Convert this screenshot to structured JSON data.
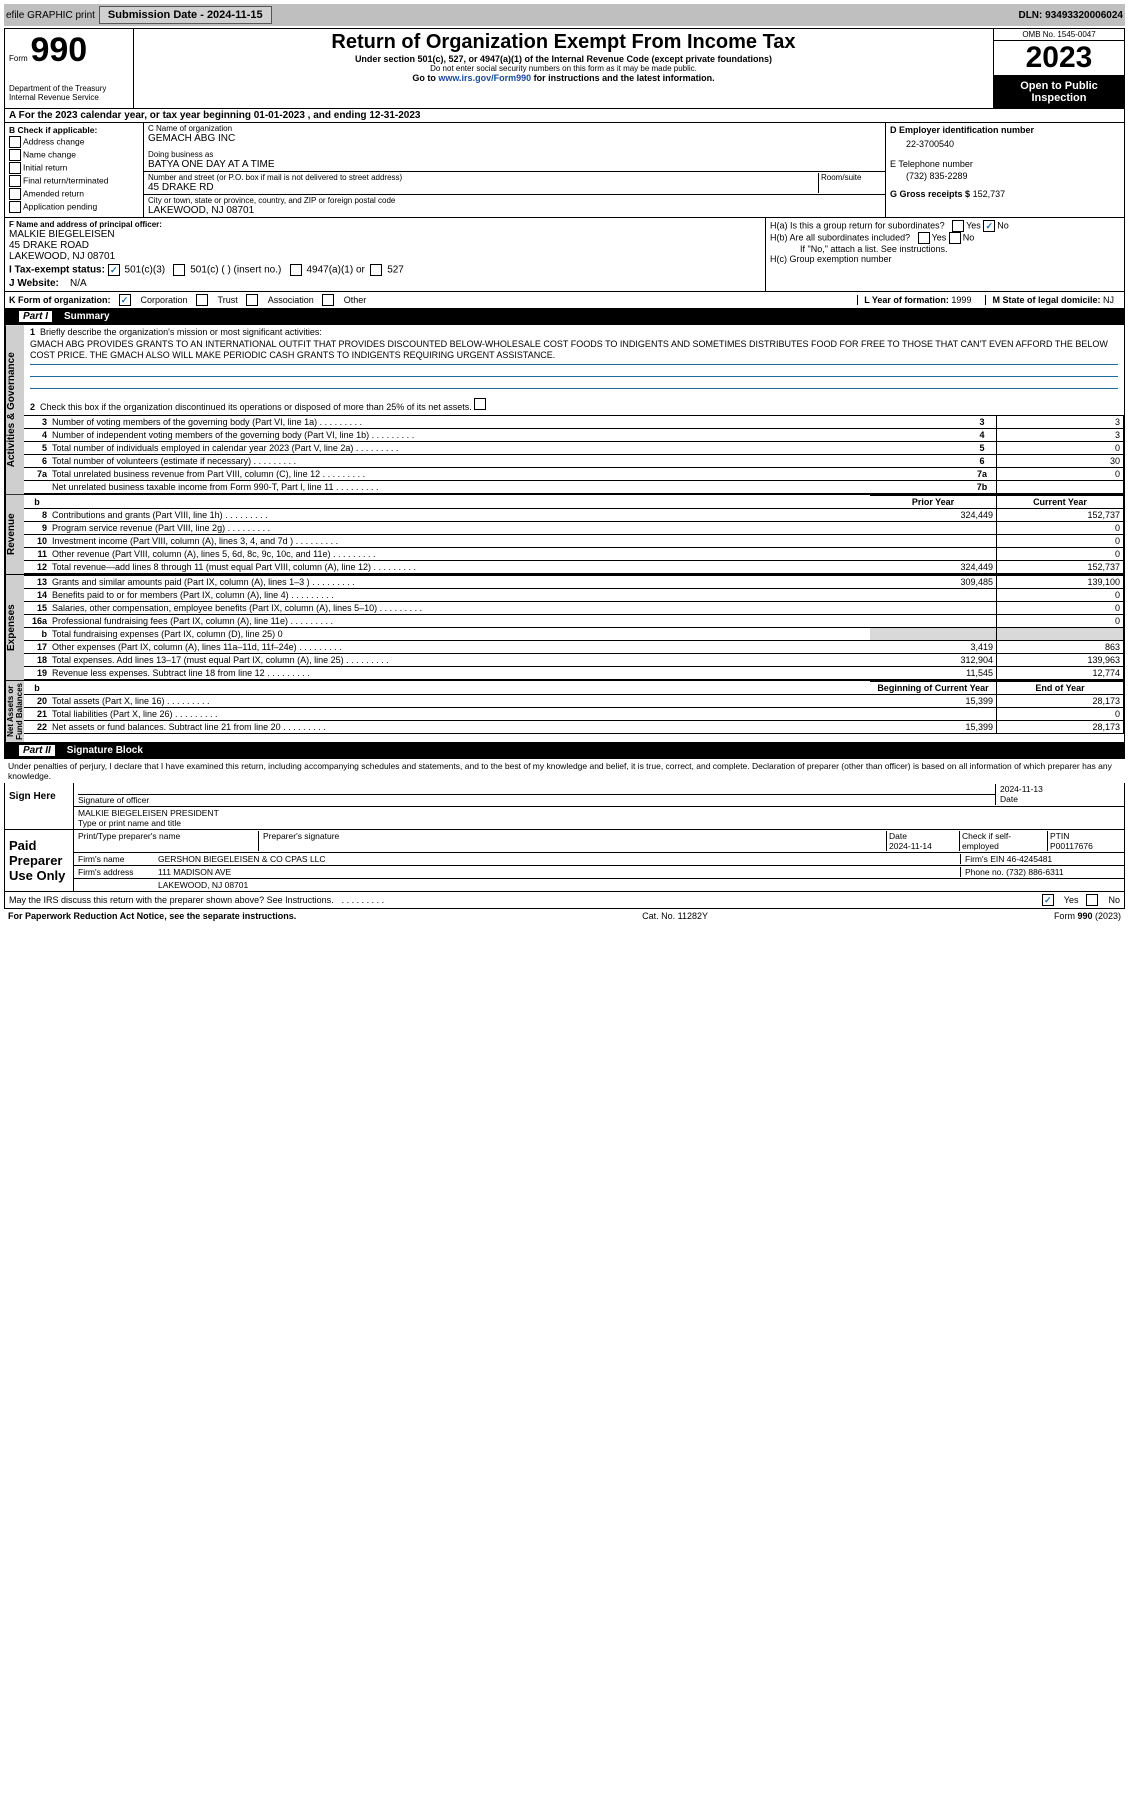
{
  "topbar": {
    "efile": "efile GRAPHIC print",
    "subdate_label": "Submission Date - 2024-11-15",
    "dln": "DLN: 93493320006024"
  },
  "header": {
    "form_small": "Form",
    "form_num": "990",
    "title": "Return of Organization Exempt From Income Tax",
    "subtitle": "Under section 501(c), 527, or 4947(a)(1) of the Internal Revenue Code (except private foundations)",
    "warn": "Do not enter social security numbers on this form as it may be made public.",
    "goto": "Go to www.irs.gov/Form990 for instructions and the latest information.",
    "dept": "Department of the Treasury",
    "irs": "Internal Revenue Service",
    "omb": "OMB No. 1545-0047",
    "year": "2023",
    "open": "Open to Public Inspection"
  },
  "a_line": "A For the 2023 calendar year, or tax year beginning 01-01-2023   , and ending 12-31-2023",
  "b": {
    "label": "B Check if applicable:",
    "items": [
      "Address change",
      "Name change",
      "Initial return",
      "Final return/terminated",
      "Amended return",
      "Application pending"
    ]
  },
  "c": {
    "name_label": "C Name of organization",
    "name": "GEMACH ABG INC",
    "dba_label": "Doing business as",
    "dba": "BATYA ONE DAY AT A TIME",
    "addr_label": "Number and street (or P.O. box if mail is not delivered to street address)",
    "room": "Room/suite",
    "addr": "45 DRAKE RD",
    "city_label": "City or town, state or province, country, and ZIP or foreign postal code",
    "city": "LAKEWOOD, NJ  08701"
  },
  "d": {
    "label": "D Employer identification number",
    "val": "22-3700540"
  },
  "e": {
    "label": "E Telephone number",
    "val": "(732) 835-2289"
  },
  "g": {
    "label": "G Gross receipts $",
    "val": "152,737"
  },
  "f": {
    "label": "F Name and address of principal officer:",
    "name": "MALKIE BIEGELEISEN",
    "addr": "45 DRAKE ROAD",
    "city": "LAKEWOOD, NJ  08701"
  },
  "h": {
    "a": "H(a)  Is this a group return for subordinates?",
    "b": "H(b)  Are all subordinates included?",
    "note": "If \"No,\" attach a list. See instructions.",
    "c": "H(c)  Group exemption number"
  },
  "i": {
    "label": "I   Tax-exempt status:",
    "o1": "501(c)(3)",
    "o2": "501(c) (  ) (insert no.)",
    "o3": "4947(a)(1) or",
    "o4": "527"
  },
  "j": {
    "label": "J   Website:",
    "val": "N/A"
  },
  "k": {
    "label": "K Form of organization:",
    "o1": "Corporation",
    "o2": "Trust",
    "o3": "Association",
    "o4": "Other"
  },
  "l": {
    "label": "L Year of formation:",
    "val": "1999"
  },
  "m": {
    "label": "M State of legal domicile:",
    "val": "NJ"
  },
  "part1": {
    "title": "Part I",
    "sub": "Summary"
  },
  "summary": {
    "q1": "Briefly describe the organization's mission or most significant activities:",
    "mission": "GMACH ABG PROVIDES GRANTS TO AN INTERNATIONAL OUTFIT THAT PROVIDES DISCOUNTED BELOW-WHOLESALE COST FOODS TO INDIGENTS AND SOMETIMES DISTRIBUTES FOOD FOR FREE TO THOSE THAT CAN'T EVEN AFFORD THE BELOW COST PRICE. THE GMACH ALSO WILL MAKE PERIODIC CASH GRANTS TO INDIGENTS REQUIRING URGENT ASSISTANCE.",
    "q2": "Check this box       if the organization discontinued its operations or disposed of more than 25% of its net assets.",
    "rows_gov": [
      {
        "n": "3",
        "t": "Number of voting members of the governing body (Part VI, line 1a)",
        "box": "3",
        "v": "3"
      },
      {
        "n": "4",
        "t": "Number of independent voting members of the governing body (Part VI, line 1b)",
        "box": "4",
        "v": "3"
      },
      {
        "n": "5",
        "t": "Total number of individuals employed in calendar year 2023 (Part V, line 2a)",
        "box": "5",
        "v": "0"
      },
      {
        "n": "6",
        "t": "Total number of volunteers (estimate if necessary)",
        "box": "6",
        "v": "30"
      },
      {
        "n": "7a",
        "t": "Total unrelated business revenue from Part VIII, column (C), line 12",
        "box": "7a",
        "v": "0"
      },
      {
        "n": "",
        "t": "Net unrelated business taxable income from Form 990-T, Part I, line 11",
        "box": "7b",
        "v": ""
      }
    ],
    "hdr_prior": "Prior Year",
    "hdr_curr": "Current Year",
    "rows_rev": [
      {
        "n": "8",
        "t": "Contributions and grants (Part VIII, line 1h)",
        "p": "324,449",
        "c": "152,737"
      },
      {
        "n": "9",
        "t": "Program service revenue (Part VIII, line 2g)",
        "p": "",
        "c": "0"
      },
      {
        "n": "10",
        "t": "Investment income (Part VIII, column (A), lines 3, 4, and 7d )",
        "p": "",
        "c": "0"
      },
      {
        "n": "11",
        "t": "Other revenue (Part VIII, column (A), lines 5, 6d, 8c, 9c, 10c, and 11e)",
        "p": "",
        "c": "0"
      },
      {
        "n": "12",
        "t": "Total revenue—add lines 8 through 11 (must equal Part VIII, column (A), line 12)",
        "p": "324,449",
        "c": "152,737"
      }
    ],
    "rows_exp": [
      {
        "n": "13",
        "t": "Grants and similar amounts paid (Part IX, column (A), lines 1–3 )",
        "p": "309,485",
        "c": "139,100"
      },
      {
        "n": "14",
        "t": "Benefits paid to or for members (Part IX, column (A), line 4)",
        "p": "",
        "c": "0"
      },
      {
        "n": "15",
        "t": "Salaries, other compensation, employee benefits (Part IX, column (A), lines 5–10)",
        "p": "",
        "c": "0"
      },
      {
        "n": "16a",
        "t": "Professional fundraising fees (Part IX, column (A), line 11e)",
        "p": "",
        "c": "0"
      },
      {
        "n": "b",
        "t": "Total fundraising expenses (Part IX, column (D), line 25) 0",
        "p": "grey",
        "c": "grey"
      },
      {
        "n": "17",
        "t": "Other expenses (Part IX, column (A), lines 11a–11d, 11f–24e)",
        "p": "3,419",
        "c": "863"
      },
      {
        "n": "18",
        "t": "Total expenses. Add lines 13–17 (must equal Part IX, column (A), line 25)",
        "p": "312,904",
        "c": "139,963"
      },
      {
        "n": "19",
        "t": "Revenue less expenses. Subtract line 18 from line 12",
        "p": "11,545",
        "c": "12,774"
      }
    ],
    "hdr_beg": "Beginning of Current Year",
    "hdr_end": "End of Year",
    "rows_net": [
      {
        "n": "20",
        "t": "Total assets (Part X, line 16)",
        "p": "15,399",
        "c": "28,173"
      },
      {
        "n": "21",
        "t": "Total liabilities (Part X, line 26)",
        "p": "",
        "c": "0"
      },
      {
        "n": "22",
        "t": "Net assets or fund balances. Subtract line 21 from line 20",
        "p": "15,399",
        "c": "28,173"
      }
    ]
  },
  "part2": {
    "title": "Part II",
    "sub": "Signature Block"
  },
  "perjury": "Under penalties of perjury, I declare that I have examined this return, including accompanying schedules and statements, and to the best of my knowledge and belief, it is true, correct, and complete. Declaration of preparer (other than officer) is based on all information of which preparer has any knowledge.",
  "sign": {
    "here": "Sign Here",
    "sig_label": "Signature of officer",
    "date_label": "Date",
    "date": "2024-11-13",
    "name": "MALKIE BIEGELEISEN PRESIDENT",
    "name_label": "Type or print name and title"
  },
  "paid": {
    "label": "Paid Preparer Use Only",
    "h1": "Print/Type preparer's name",
    "h2": "Preparer's signature",
    "h3": "Date",
    "h4": "Check        if self-employed",
    "h5": "PTIN",
    "date": "2024-11-14",
    "ptin": "P00117676",
    "firm_l": "Firm's name",
    "firm": "GERSHON BIEGELEISEN & CO CPAS LLC",
    "ein_l": "Firm's EIN",
    "ein": "46-4245481",
    "addr_l": "Firm's address",
    "addr1": "111 MADISON AVE",
    "addr2": "LAKEWOOD, NJ  08701",
    "phone_l": "Phone no.",
    "phone": "(732) 886-6311"
  },
  "discuss": "May the IRS discuss this return with the preparer shown above? See Instructions.",
  "footer": {
    "l": "For Paperwork Reduction Act Notice, see the separate instructions.",
    "m": "Cat. No. 11282Y",
    "r": "Form 990 (2023)"
  },
  "dots": "  .    .    .    .    .    .    .    .    ."
}
